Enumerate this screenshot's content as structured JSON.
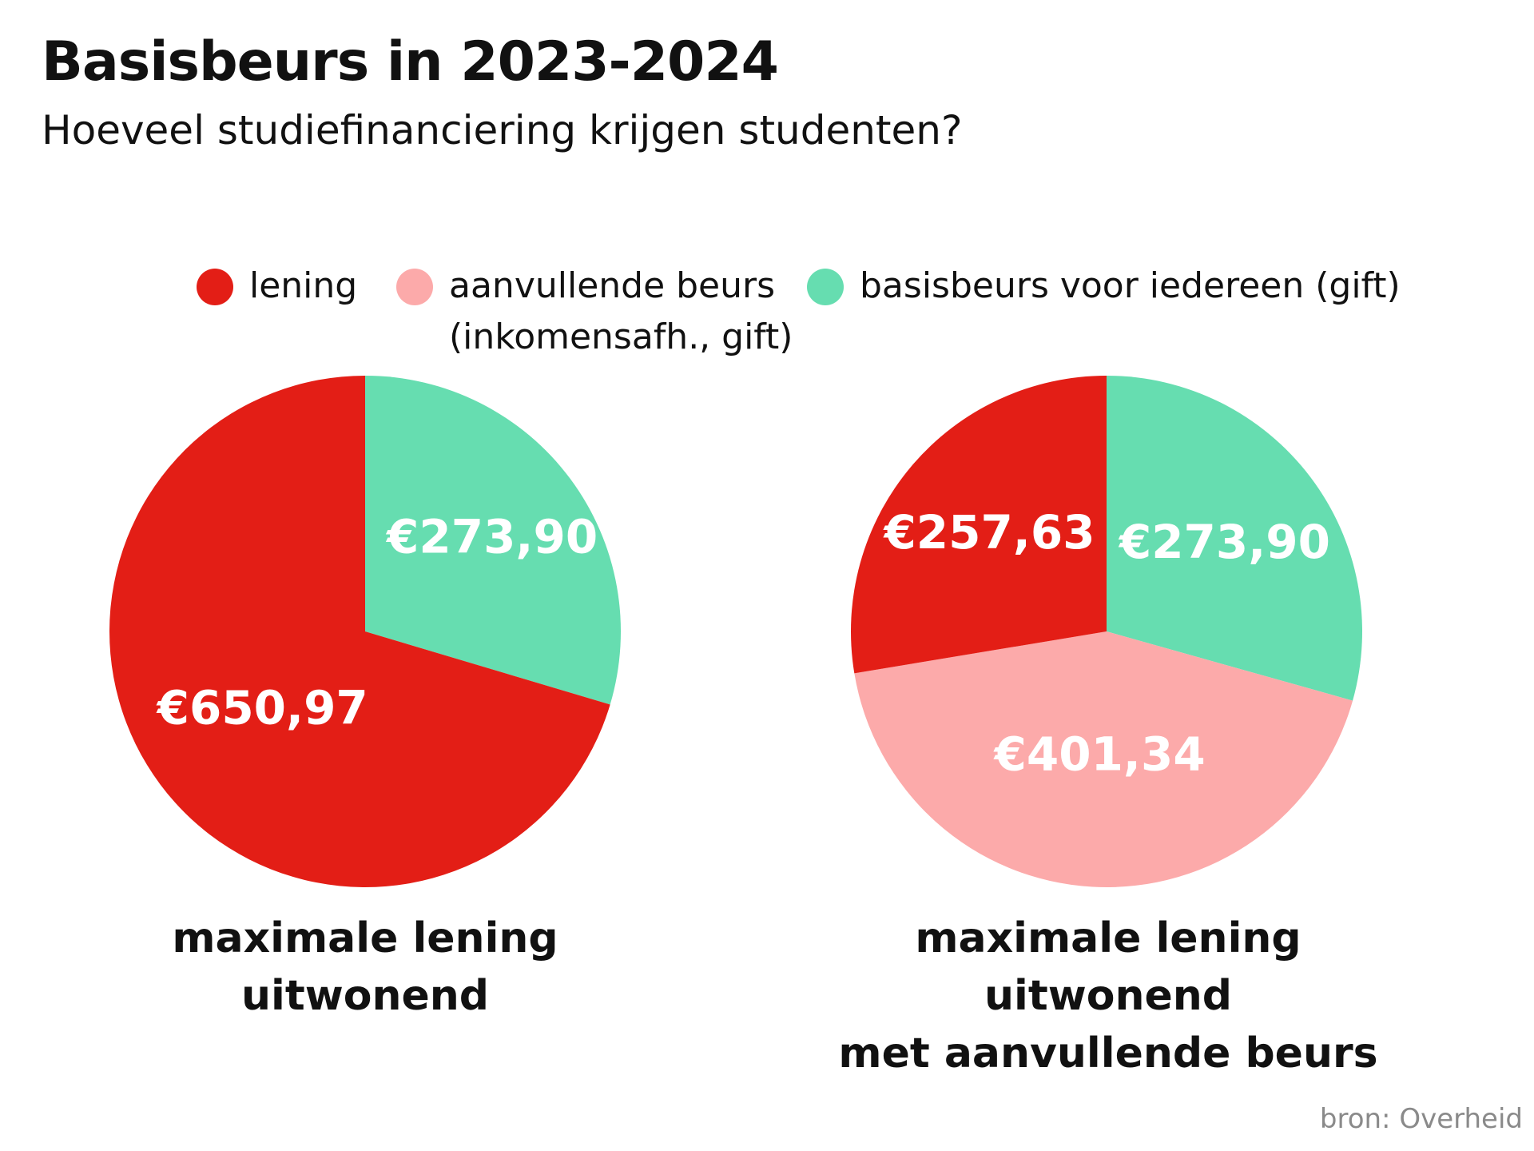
{
  "title": "Basisbeurs in 2023-2024",
  "subtitle": "Hoeveel studiefinanciering krijgen studenten?",
  "legend": [
    {
      "label": "lening",
      "color": "#e31e16"
    },
    {
      "label": "aanvullende beurs\n(inkomensafh., gift)",
      "color": "#fcaaaa"
    },
    {
      "label": "basisbeurs voor iedereen (gift)",
      "color": "#66ddb0"
    }
  ],
  "chart_data": [
    {
      "type": "pie",
      "title": "maximale lening\nuitwonend",
      "slices": [
        {
          "name": "basisbeurs voor iedereen (gift)",
          "value": 273.9,
          "label": "€273,90",
          "color": "#66ddb0"
        },
        {
          "name": "lening",
          "value": 650.97,
          "label": "€650,97",
          "color": "#e31e16"
        }
      ]
    },
    {
      "type": "pie",
      "title": "maximale lening uitwonend\nmet aanvullende beurs",
      "slices": [
        {
          "name": "basisbeurs voor iedereen (gift)",
          "value": 273.9,
          "label": "€273,90",
          "color": "#66ddb0"
        },
        {
          "name": "aanvullende beurs (inkomensafh., gift)",
          "value": 401.34,
          "label": "€401,34",
          "color": "#fcaaaa"
        },
        {
          "name": "lening",
          "value": 257.63,
          "label": "€257,63",
          "color": "#e31e16"
        }
      ]
    }
  ],
  "source": "bron: Overheid"
}
